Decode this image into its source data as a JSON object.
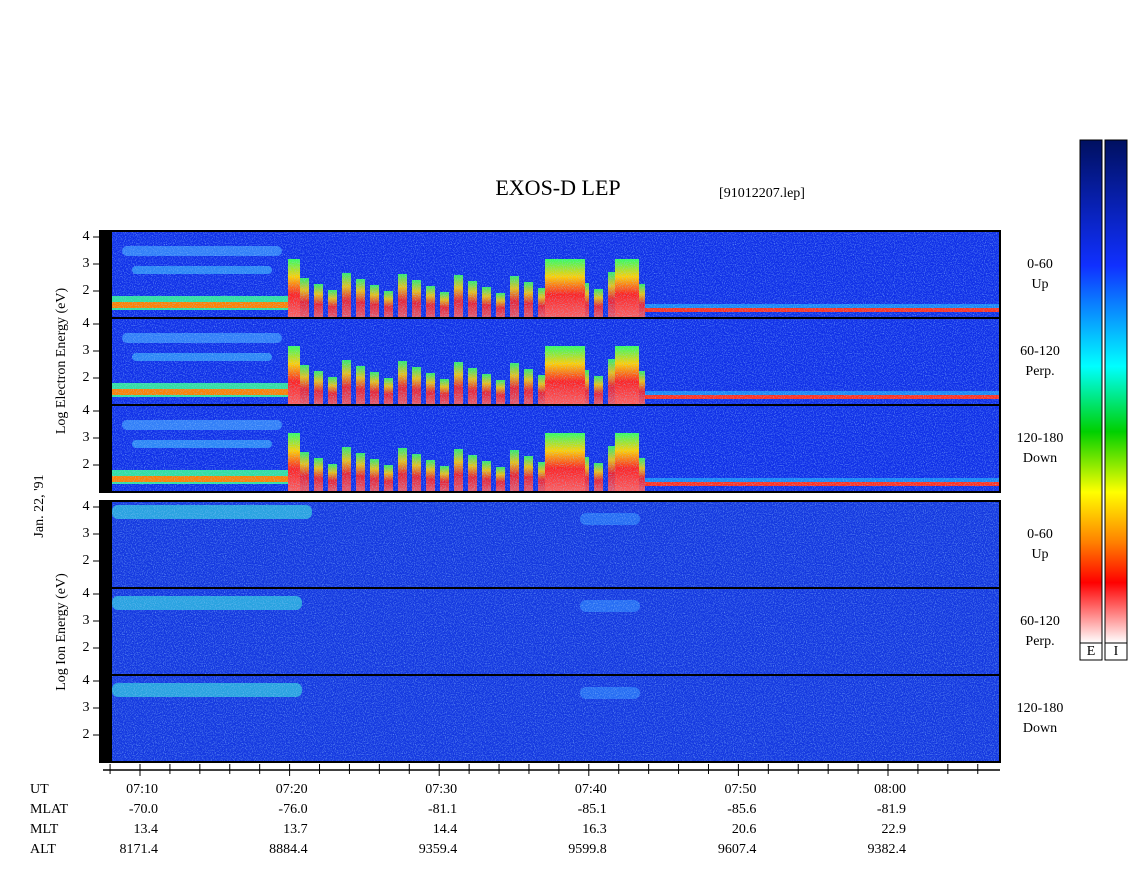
{
  "title": "EXOS-D LEP",
  "file": "[91012207.lep]",
  "date_label": "Jan. 22, '91",
  "electron_axis_label": "Log   Electron   Energy (eV)",
  "ion_axis_label": "Log   Ion   Energy (eV)",
  "energy_ticks": [
    "2",
    "3",
    "4"
  ],
  "pitch_angles": [
    {
      "range": "0-60",
      "direction": "Up"
    },
    {
      "range": "60-120",
      "direction": "Perp."
    },
    {
      "range": "120-180",
      "direction": "Down"
    }
  ],
  "orbit_table": {
    "rows": [
      {
        "label": "UT",
        "values": [
          "07:10",
          "07:20",
          "07:30",
          "07:40",
          "07:50",
          "08:00"
        ]
      },
      {
        "label": "MLAT",
        "values": [
          "-70.0",
          "-76.0",
          "-81.1",
          "-85.1",
          "-85.6",
          "-81.9"
        ]
      },
      {
        "label": "MLT",
        "values": [
          "13.4",
          "13.7",
          "14.4",
          "16.3",
          "20.6",
          "22.9"
        ]
      },
      {
        "label": "ALT",
        "values": [
          "8171.4",
          "8884.4",
          "9359.4",
          "9599.8",
          "9607.4",
          "9382.4"
        ]
      }
    ]
  },
  "colorbar_labels": [
    "E",
    "I"
  ]
}
